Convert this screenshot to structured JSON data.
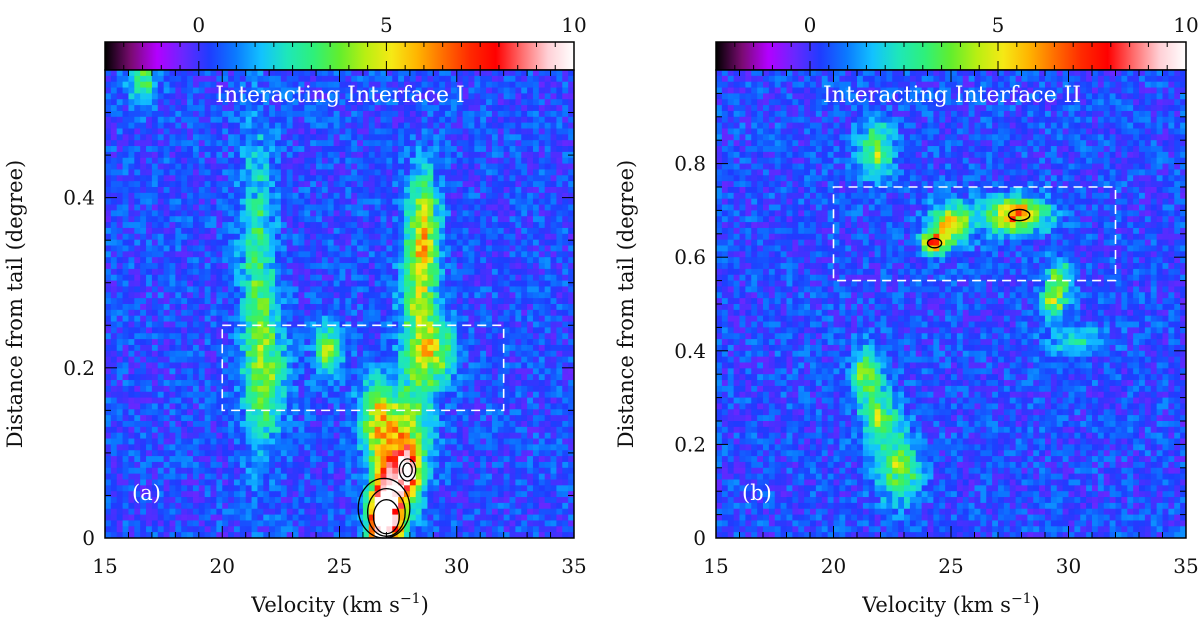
{
  "figure": {
    "colorbar": {
      "tick_labels": [
        "0",
        "5",
        "10"
      ],
      "tick_values": [
        0,
        5,
        10
      ],
      "range": [
        -2.5,
        10
      ],
      "colors": [
        "#000000",
        "#7a0b72",
        "#b300ff",
        "#6a27ff",
        "#1f3cff",
        "#0b79ff",
        "#12c2ff",
        "#1ee7b9",
        "#2ef07a",
        "#62ee2d",
        "#b9ef12",
        "#f6e915",
        "#ffb300",
        "#ff6c00",
        "#ff2a00",
        "#ff0000",
        "#ff6d6d",
        "#ffd0d6",
        "#ffffff"
      ]
    },
    "panels": [
      {
        "title": "Interacting Interface I",
        "tag": "(a)",
        "xlabel": "Velocity (km s",
        "xlabel_sup": "−1",
        "xlabel_end": ")",
        "ylabel": "Distance from tail (degree)",
        "xlim": [
          15,
          35
        ],
        "ylim": [
          0,
          0.55
        ],
        "xticks": [
          15,
          20,
          25,
          30,
          35
        ],
        "xtick_labels": [
          "15",
          "20",
          "25",
          "30",
          "35"
        ],
        "yticks": [
          0,
          0.2,
          0.4
        ],
        "ytick_labels": [
          "0",
          "0.2",
          "0.4"
        ],
        "box": {
          "x": [
            20,
            32
          ],
          "y": [
            0.15,
            0.25
          ]
        },
        "features": [
          {
            "vx": 21.5,
            "y": 0.3,
            "sx": 0.5,
            "sy": 0.12,
            "amp": 2.6
          },
          {
            "vx": 22.0,
            "y": 0.19,
            "sx": 0.6,
            "sy": 0.05,
            "amp": 2.4
          },
          {
            "vx": 24.5,
            "y": 0.22,
            "sx": 0.4,
            "sy": 0.02,
            "amp": 4.0
          },
          {
            "vx": 28.6,
            "y": 0.36,
            "sx": 0.45,
            "sy": 0.05,
            "amp": 4.2
          },
          {
            "vx": 28.3,
            "y": 0.28,
            "sx": 0.5,
            "sy": 0.06,
            "amp": 2.6
          },
          {
            "vx": 29.0,
            "y": 0.22,
            "sx": 0.6,
            "sy": 0.03,
            "amp": 3.6
          },
          {
            "vx": 26.6,
            "y": 0.14,
            "sx": 0.5,
            "sy": 0.03,
            "amp": 4.6
          },
          {
            "vx": 28.0,
            "y": 0.12,
            "sx": 0.6,
            "sy": 0.05,
            "amp": 3.2
          },
          {
            "vx": 26.8,
            "y": 0.02,
            "sx": 0.35,
            "sy": 0.03,
            "amp": 9.5
          },
          {
            "vx": 27.2,
            "y": 0.05,
            "sx": 0.5,
            "sy": 0.045,
            "amp": 7.2
          },
          {
            "vx": 27.9,
            "y": 0.08,
            "sx": 0.35,
            "sy": 0.02,
            "amp": 6.5
          },
          {
            "vx": 16.6,
            "y": 0.54,
            "sx": 0.4,
            "sy": 0.02,
            "amp": 3.0
          }
        ]
      },
      {
        "title": "Interacting Interface II",
        "tag": "(b)",
        "xlabel": "Velocity (km s",
        "xlabel_sup": "−1",
        "xlabel_end": ")",
        "ylabel": "Distance from tail (degree)",
        "xlim": [
          15,
          35
        ],
        "ylim": [
          0,
          1.0
        ],
        "xticks": [
          15,
          20,
          25,
          30,
          35
        ],
        "xtick_labels": [
          "15",
          "20",
          "25",
          "30",
          "35"
        ],
        "yticks": [
          0,
          0.2,
          0.4,
          0.6,
          0.8
        ],
        "ytick_labels": [
          "0",
          "0.2",
          "0.4",
          "0.6",
          "0.8"
        ],
        "box": {
          "x": [
            20,
            32
          ],
          "y": [
            0.55,
            0.75
          ]
        },
        "features": [
          {
            "vx": 21.8,
            "y": 0.83,
            "sx": 0.5,
            "sy": 0.04,
            "amp": 3.6
          },
          {
            "vx": 21.4,
            "y": 0.35,
            "sx": 0.4,
            "sy": 0.04,
            "amp": 3.6
          },
          {
            "vx": 22.0,
            "y": 0.26,
            "sx": 0.5,
            "sy": 0.04,
            "amp": 3.4
          },
          {
            "vx": 22.8,
            "y": 0.15,
            "sx": 0.6,
            "sy": 0.05,
            "amp": 3.6
          },
          {
            "vx": 24.3,
            "y": 0.63,
            "sx": 0.35,
            "sy": 0.015,
            "amp": 6.0
          },
          {
            "vx": 25.0,
            "y": 0.67,
            "sx": 0.6,
            "sy": 0.03,
            "amp": 4.8
          },
          {
            "vx": 27.8,
            "y": 0.69,
            "sx": 0.9,
            "sy": 0.025,
            "amp": 6.0
          },
          {
            "vx": 29.6,
            "y": 0.55,
            "sx": 0.35,
            "sy": 0.03,
            "amp": 3.6
          },
          {
            "vx": 29.3,
            "y": 0.5,
            "sx": 0.4,
            "sy": 0.02,
            "amp": 3.2
          },
          {
            "vx": 30.3,
            "y": 0.42,
            "sx": 0.9,
            "sy": 0.02,
            "amp": 2.0
          }
        ]
      }
    ]
  },
  "chart_data": [
    {
      "type": "heatmap",
      "title": "Interacting Interface I",
      "xlabel": "Velocity (km s−1)",
      "ylabel": "Distance from tail (degree)",
      "xlim": [
        15,
        35
      ],
      "ylim": [
        0,
        0.55
      ],
      "colorbar_range": [
        -2.5,
        10
      ],
      "colorbar_ticks": [
        0,
        5,
        10
      ],
      "dashed_box": {
        "velocity": [
          20,
          32
        ],
        "distance": [
          0.15,
          0.25
        ]
      },
      "emission_peaks": [
        {
          "velocity": 26.8,
          "distance": 0.02,
          "intensity": 9.5
        },
        {
          "velocity": 27.9,
          "distance": 0.08,
          "intensity": 6.5
        },
        {
          "velocity": 24.5,
          "distance": 0.22,
          "intensity": 4.0
        },
        {
          "velocity": 28.6,
          "distance": 0.36,
          "intensity": 4.2
        }
      ]
    },
    {
      "type": "heatmap",
      "title": "Interacting Interface II",
      "xlabel": "Velocity (km s−1)",
      "ylabel": "Distance from tail (degree)",
      "xlim": [
        15,
        35
      ],
      "ylim": [
        0,
        1.0
      ],
      "colorbar_range": [
        -2.5,
        10
      ],
      "colorbar_ticks": [
        0,
        5,
        10
      ],
      "dashed_box": {
        "velocity": [
          20,
          32
        ],
        "distance": [
          0.55,
          0.75
        ]
      },
      "emission_peaks": [
        {
          "velocity": 21.8,
          "distance": 0.83,
          "intensity": 3.6
        },
        {
          "velocity": 24.3,
          "distance": 0.63,
          "intensity": 6.0
        },
        {
          "velocity": 27.8,
          "distance": 0.69,
          "intensity": 6.0
        },
        {
          "velocity": 29.6,
          "distance": 0.55,
          "intensity": 3.6
        },
        {
          "velocity": 22.8,
          "distance": 0.15,
          "intensity": 3.6
        }
      ]
    }
  ]
}
